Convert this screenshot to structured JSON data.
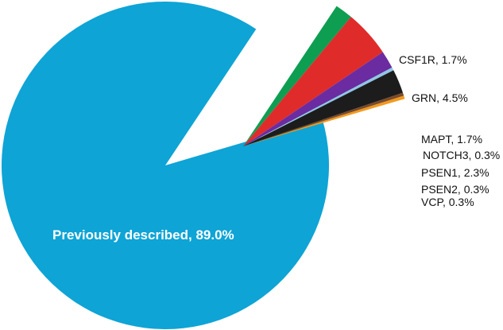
{
  "chart_data": {
    "type": "pie",
    "slices": [
      {
        "name": "Previously described",
        "value": 89.0,
        "label": "Previously described, 89.0%",
        "color": "#0ea4d6"
      },
      {
        "name": "CSF1R",
        "value": 1.7,
        "label": "CSF1R, 1.7%",
        "color": "#0d9e52"
      },
      {
        "name": "GRN",
        "value": 4.5,
        "label": "GRN, 4.5%",
        "color": "#e02b2b"
      },
      {
        "name": "MAPT",
        "value": 1.7,
        "label": "MAPT, 1.7%",
        "color": "#6a2ca0"
      },
      {
        "name": "NOTCH3",
        "value": 0.3,
        "label": "NOTCH3, 0.3%",
        "color": "#8fc6e6"
      },
      {
        "name": "PSEN1",
        "value": 2.3,
        "label": "PSEN1, 2.3%",
        "color": "#1c1c1c"
      },
      {
        "name": "PSEN2",
        "value": 0.3,
        "label": "PSEN2, 0.3%",
        "color": "#7a4a28"
      },
      {
        "name": "VCP",
        "value": 0.3,
        "label": "VCP, 0.3%",
        "color": "#f29a1e"
      }
    ],
    "exploded": [
      "CSF1R",
      "GRN",
      "MAPT",
      "NOTCH3",
      "PSEN1",
      "PSEN2",
      "VCP"
    ]
  }
}
